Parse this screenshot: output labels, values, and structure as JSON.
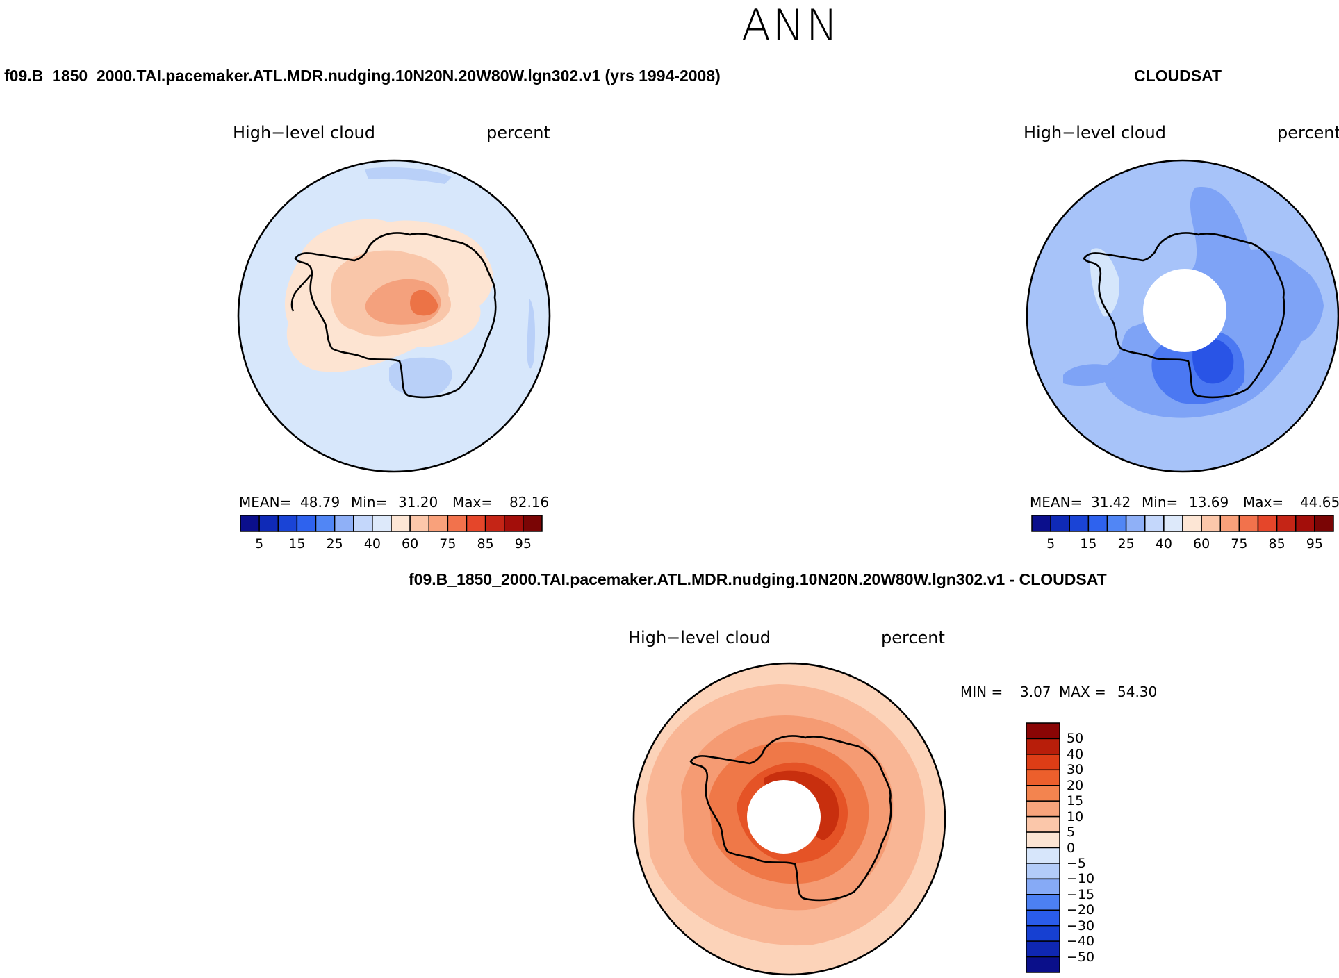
{
  "title": "ANN",
  "colors": {
    "abs_scale": [
      "#0b0f8c",
      "#0f2ab7",
      "#1a44d6",
      "#2e62ee",
      "#5186f5",
      "#8fb0f7",
      "#c4d7fb",
      "#dde9fa",
      "#fde6d5",
      "#fcc7aa",
      "#f9a17b",
      "#f2724c",
      "#e5462a",
      "#c52516",
      "#a30e0a",
      "#7a0505"
    ],
    "diff_scale": [
      "#0a0f8a",
      "#0f27b2",
      "#1640d2",
      "#2a5cea",
      "#4c80f3",
      "#86aaf6",
      "#b3ccf9",
      "#d7e6fb",
      "#fbe4d3",
      "#fbc7aa",
      "#f8a47c",
      "#f3844f",
      "#ec5f2c",
      "#dd3d16",
      "#b81e0a",
      "#8a0505"
    ],
    "map_fill_model": [
      "#d7e7fb",
      "#fde4d2",
      "#f9c6a9",
      "#f4a17d",
      "#ec7346",
      "#b9d0f8"
    ],
    "map_fill_obs": [
      "#a7c3f9",
      "#7ea3f6",
      "#4b78f2",
      "#2954e6",
      "#d5e6fb"
    ],
    "map_fill_diff": [
      "#f9b695",
      "#f59b73",
      "#ef7848",
      "#e55326",
      "#c82f0e",
      "#fcd3b9"
    ]
  },
  "chart_data": [
    {
      "type": "heatmap",
      "projection": "south polar stereographic",
      "case_title": "f09.B_1850_2000.TAI.pacemaker.ATL.MDR.nudging.10N20N.20W80W.lgn302.v1 (yrs 1994-2008)",
      "variable": "High−level cloud",
      "units": "percent",
      "stats": {
        "mean_label": "MEAN=",
        "mean": "48.79",
        "min_label": "Min=",
        "min": "31.20",
        "max_label": "Max=",
        "max": "82.16"
      },
      "colorbar_ticks": [
        "5",
        "15",
        "25",
        "40",
        "60",
        "75",
        "85",
        "95"
      ]
    },
    {
      "type": "heatmap",
      "projection": "south polar stereographic",
      "case_title": "CLOUDSAT",
      "variable": "High−level cloud",
      "units": "percent",
      "stats": {
        "mean_label": "MEAN=",
        "mean": "31.42",
        "min_label": "Min=",
        "min": "13.69",
        "max_label": "Max=",
        "max": "44.65"
      },
      "colorbar_ticks": [
        "5",
        "15",
        "25",
        "40",
        "60",
        "75",
        "85",
        "95"
      ]
    },
    {
      "type": "heatmap",
      "projection": "south polar stereographic",
      "case_title": "f09.B_1850_2000.TAI.pacemaker.ATL.MDR.nudging.10N20N.20W80W.lgn302.v1 - CLOUDSAT",
      "variable": "High−level cloud",
      "units": "percent",
      "stats": {
        "min_label": "MIN =",
        "min": "3.07",
        "max_label": "MAX =",
        "max": "54.30"
      },
      "colorbar_ticks": [
        "50",
        "40",
        "30",
        "20",
        "15",
        "10",
        "5",
        "0",
        "−5",
        "−10",
        "−15",
        "−20",
        "−30",
        "−40",
        "−50"
      ]
    }
  ]
}
